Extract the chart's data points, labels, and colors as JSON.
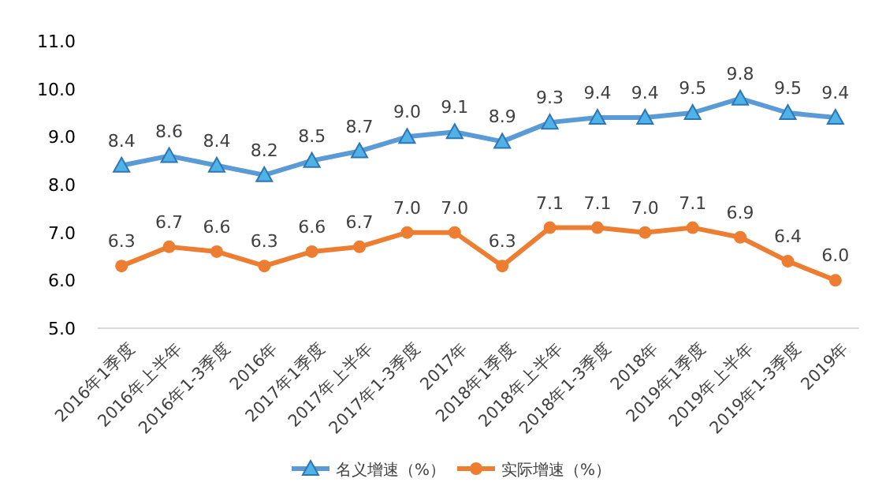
{
  "chart_data": {
    "type": "line",
    "categories": [
      "2016年1季度",
      "2016年上半年",
      "2016年1-3季度",
      "2016年",
      "2017年1季度",
      "2017年上半年",
      "2017年1-3季度",
      "2017年",
      "2018年1季度",
      "2018年上半年",
      "2018年1-3季度",
      "2018年",
      "2019年1季度",
      "2019年上半年",
      "2019年1-3季度",
      "2019年"
    ],
    "series": [
      {
        "name": "名义增速（%）",
        "color": "#5b9bd5",
        "marker": "triangle",
        "values": [
          8.4,
          8.6,
          8.4,
          8.2,
          8.5,
          8.7,
          9.0,
          9.1,
          8.9,
          9.3,
          9.4,
          9.4,
          9.5,
          9.8,
          9.5,
          9.4
        ],
        "value_labels": [
          "8.4",
          "8.6",
          "8.4",
          "8.2",
          "8.5",
          "8.7",
          "9.0",
          "9.1",
          "8.9",
          "9.3",
          "9.4",
          "9.4",
          "9.5",
          "9.8",
          "9.5",
          "9.4"
        ]
      },
      {
        "name": "实际增速（%）",
        "color": "#ed7d31",
        "marker": "circle",
        "values": [
          6.3,
          6.7,
          6.6,
          6.3,
          6.6,
          6.7,
          7.0,
          7.0,
          6.3,
          7.1,
          7.1,
          7.0,
          7.1,
          6.9,
          6.4,
          6.0
        ],
        "value_labels": [
          "6.3",
          "6.7",
          "6.6",
          "6.3",
          "6.6",
          "6.7",
          "7.0",
          "7.0",
          "6.3",
          "7.1",
          "7.1",
          "7.0",
          "7.1",
          "6.9",
          "6.4",
          "6.0"
        ]
      }
    ],
    "ylim": [
      5,
      11
    ],
    "yticks": [
      {
        "value": 5,
        "label": "5.0"
      },
      {
        "value": 6,
        "label": "6.0"
      },
      {
        "value": 7,
        "label": "7.0"
      },
      {
        "value": 8,
        "label": "8.0"
      },
      {
        "value": 9,
        "label": "9.0"
      },
      {
        "value": 10,
        "label": "10.0"
      },
      {
        "value": 11,
        "label": "11.0"
      }
    ],
    "legend": "bottom",
    "grid": false
  }
}
